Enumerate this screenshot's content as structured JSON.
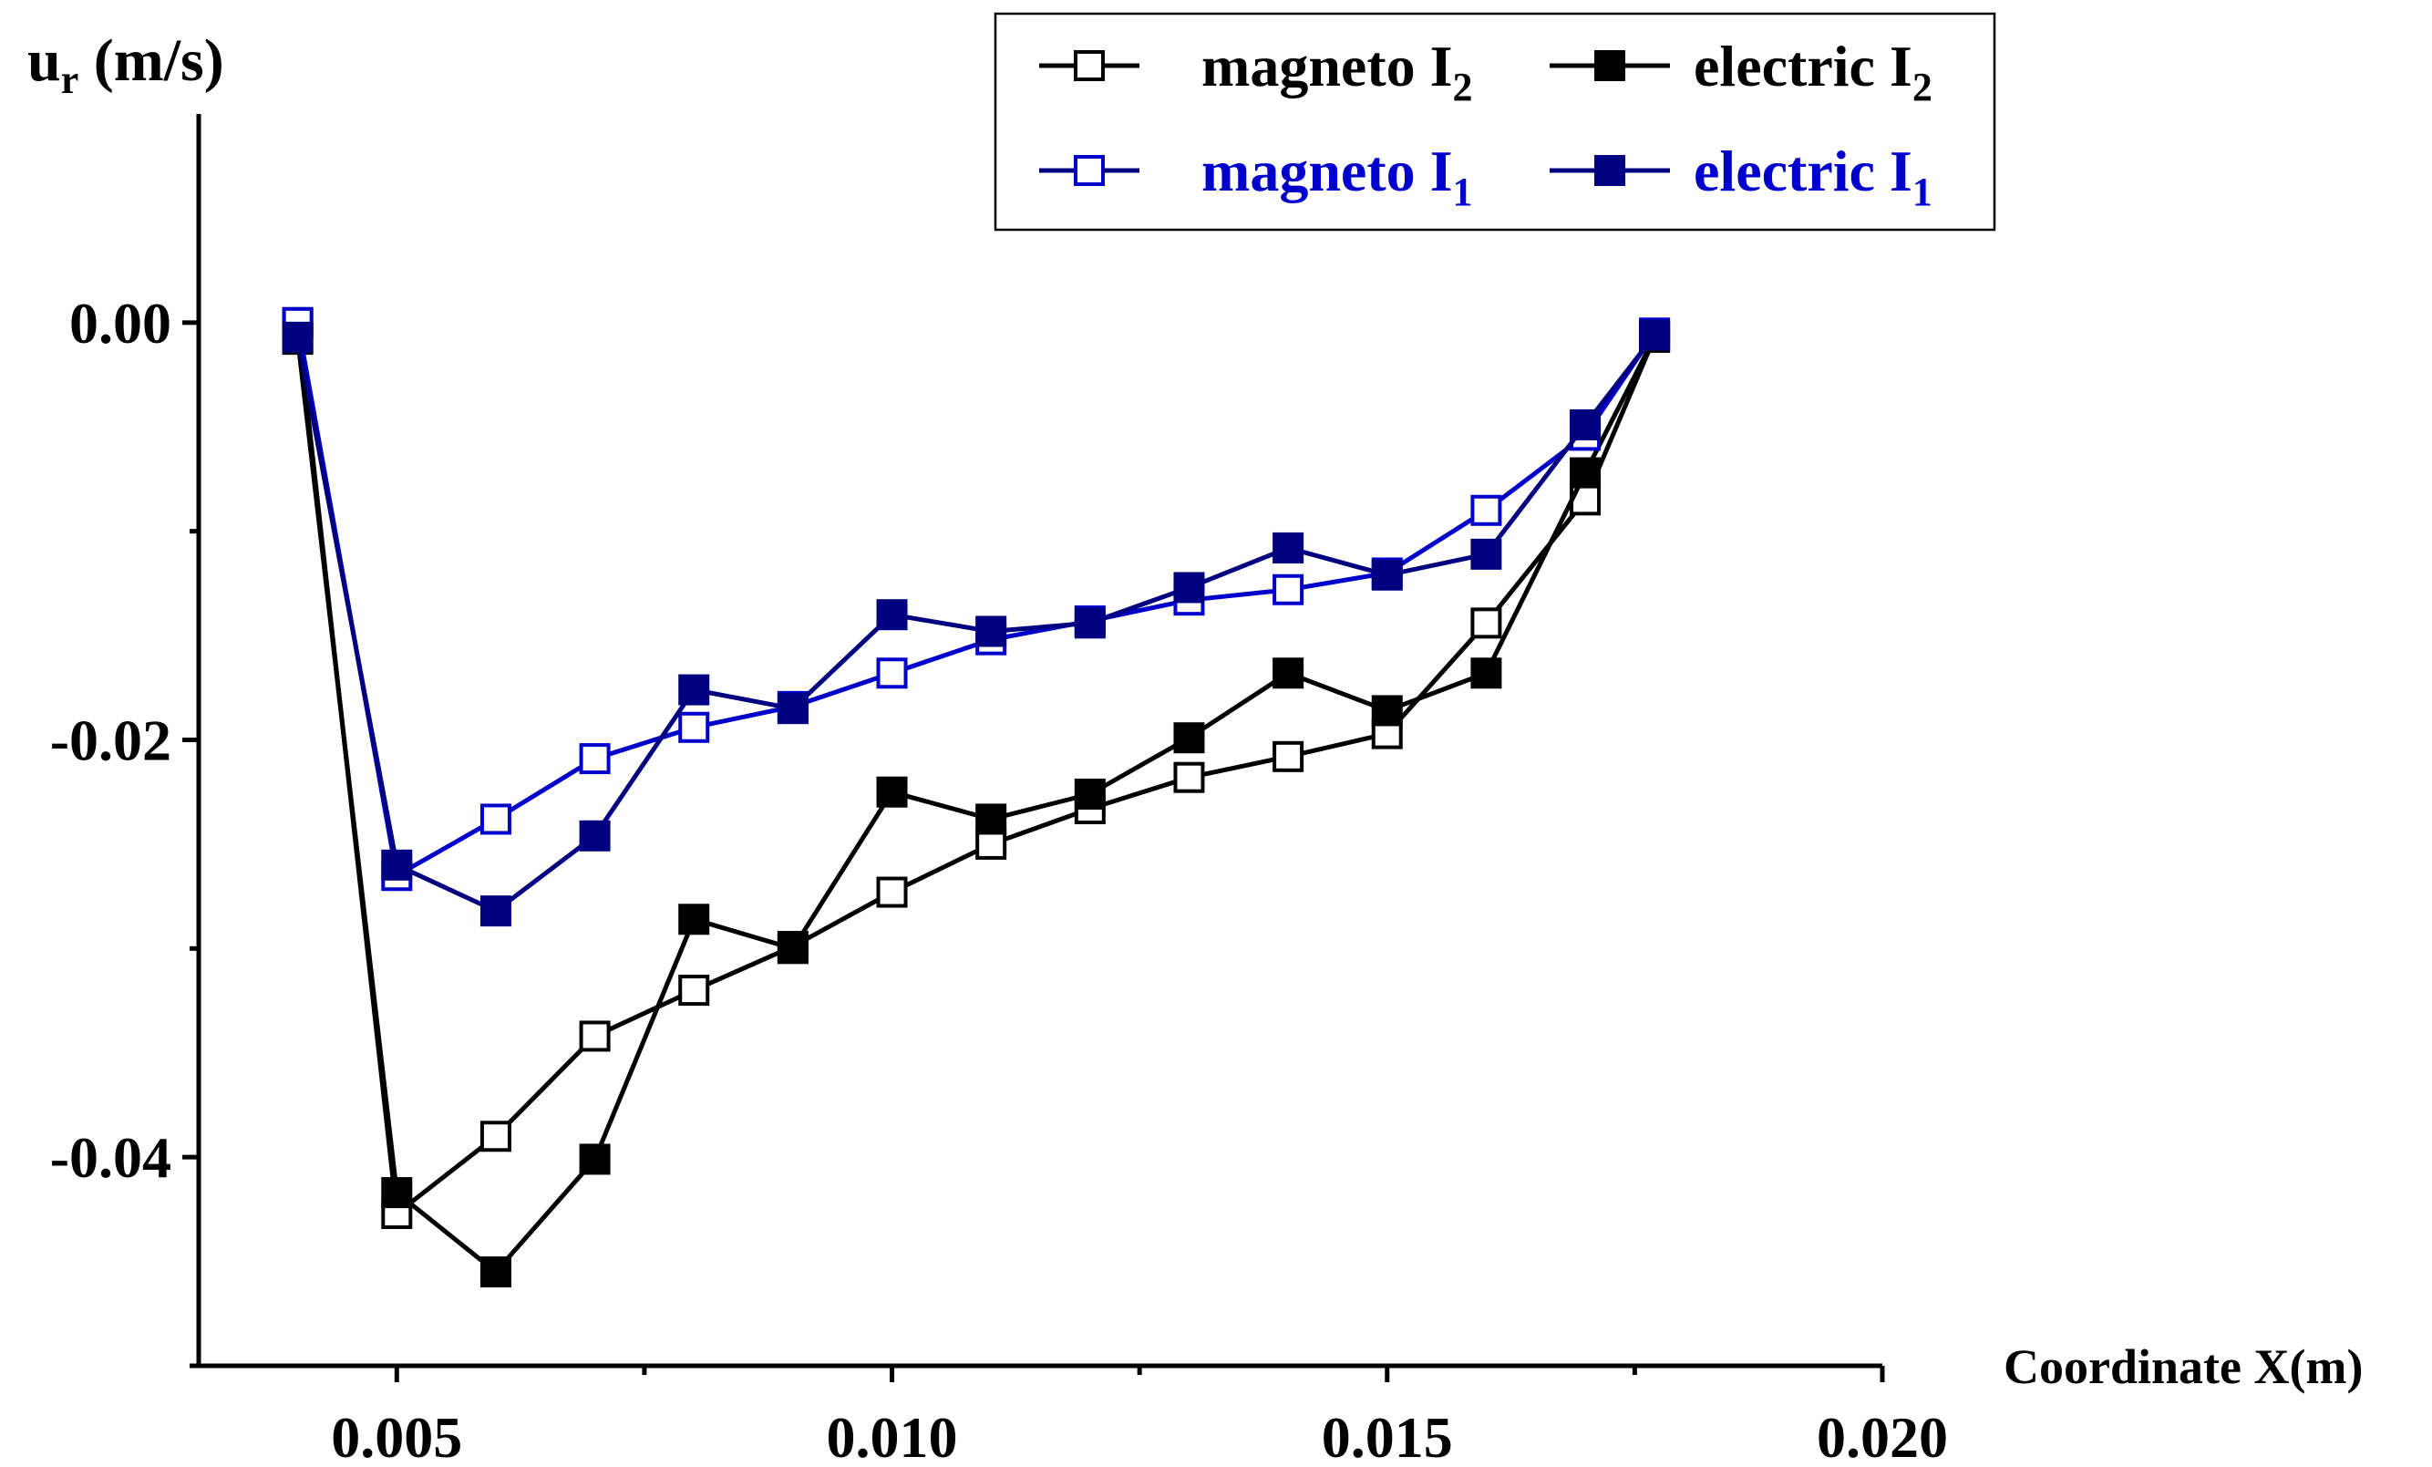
{
  "chart_data": {
    "type": "line",
    "title": "",
    "ylabel": {
      "main": "u",
      "sub": "r",
      "unit": " (m/s)"
    },
    "xlabel": "Coordinate X(m)",
    "xlim": [
      0.003,
      0.02
    ],
    "ylim": [
      -0.05,
      0.01
    ],
    "xticks": [
      {
        "value": 0.005,
        "label": "0.005"
      },
      {
        "value": 0.01,
        "label": "0.010"
      },
      {
        "value": 0.015,
        "label": "0.015"
      },
      {
        "value": 0.02,
        "label": "0.020"
      }
    ],
    "yticks": [
      {
        "value": 0.0,
        "label": "0.00"
      },
      {
        "value": -0.02,
        "label": "-0.02"
      },
      {
        "value": -0.04,
        "label": "-0.04"
      }
    ],
    "xminor": [
      0.0075,
      0.0125,
      0.0175
    ],
    "yminor": [
      -0.01,
      -0.03,
      -0.05
    ],
    "x": [
      0.004,
      0.005,
      0.006,
      0.007,
      0.008,
      0.009,
      0.01,
      0.011,
      0.012,
      0.013,
      0.014,
      0.015,
      0.016,
      0.017,
      0.0177
    ],
    "series": [
      {
        "name": "magneto I2",
        "label_main": "magneto I",
        "label_sub": "2",
        "color": "#000000",
        "marker": "open-square",
        "values": [
          0.0,
          -0.0427,
          -0.039,
          -0.0342,
          -0.032,
          -0.0299,
          -0.0273,
          -0.025,
          -0.0233,
          -0.0218,
          -0.0208,
          -0.0197,
          -0.0144,
          -0.0085,
          -0.0007
        ]
      },
      {
        "name": "electric I2",
        "label_main": "electric I",
        "label_sub": "2",
        "color": "#000000",
        "marker": "filled-square",
        "values": [
          -0.0008,
          -0.0417,
          -0.0455,
          -0.0401,
          -0.0286,
          -0.03,
          -0.0225,
          -0.0238,
          -0.0226,
          -0.0199,
          -0.0168,
          -0.0186,
          -0.0168,
          -0.0072,
          -0.0007
        ]
      },
      {
        "name": "magneto I1",
        "label_main": "magneto I",
        "label_sub": "1",
        "color": "#0000cc",
        "marker": "open-square",
        "values": [
          0.0,
          -0.0265,
          -0.0238,
          -0.0209,
          -0.0194,
          -0.0184,
          -0.0168,
          -0.0152,
          -0.0143,
          -0.0133,
          -0.0128,
          -0.012,
          -0.009,
          -0.0054,
          -0.0005
        ]
      },
      {
        "name": "electric I1",
        "label_main": "electric I",
        "label_sub": "1",
        "color": "#000080",
        "marker": "filled-square",
        "values": [
          -0.0007,
          -0.026,
          -0.0282,
          -0.0246,
          -0.0176,
          -0.0185,
          -0.014,
          -0.0148,
          -0.0144,
          -0.0127,
          -0.0108,
          -0.0121,
          -0.0111,
          -0.0049,
          -0.0006
        ]
      }
    ],
    "legend": {
      "position": "top-right",
      "text_colors": {
        "row1": "#000000",
        "row2": "#0000cc"
      },
      "line_colors": {
        "row1": "#000000",
        "row2": "#000080"
      }
    }
  }
}
